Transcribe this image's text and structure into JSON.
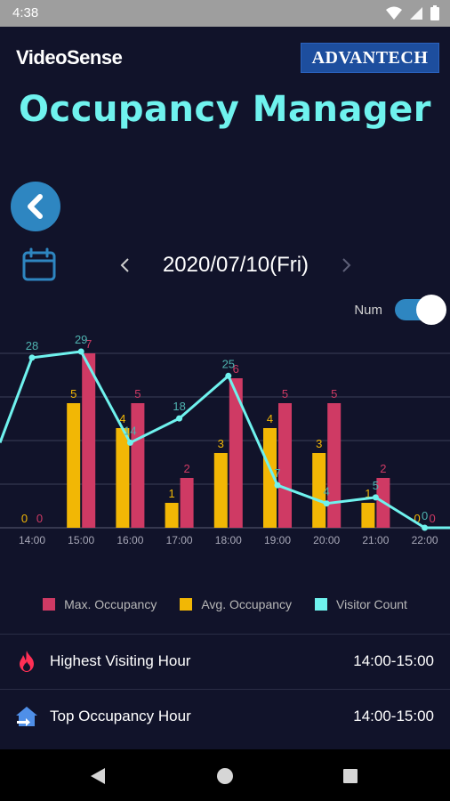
{
  "status_bar": {
    "time": "4:38"
  },
  "header": {
    "brand": "VideoSense",
    "partner": "ADVANTECH"
  },
  "title": "Occupancy Manager",
  "date_nav": {
    "date": "2020/07/10(Fri)"
  },
  "toggle": {
    "label": "Num",
    "on": true
  },
  "colors": {
    "max": "#cf3a64",
    "avg": "#f2b705",
    "visitor": "#6ff2ee",
    "accent": "#2e86c1"
  },
  "legend": {
    "max": "Max. Occupancy",
    "avg": "Avg. Occupancy",
    "visitor": "Visitor Count"
  },
  "chart_data": {
    "type": "bar",
    "categories": [
      "14:00",
      "15:00",
      "16:00",
      "17:00",
      "18:00",
      "19:00",
      "20:00",
      "21:00",
      "22:00"
    ],
    "series": [
      {
        "name": "Avg. Occupancy",
        "type": "bar",
        "values": [
          0,
          5,
          4,
          1,
          3,
          4,
          3,
          1,
          0
        ]
      },
      {
        "name": "Max. Occupancy",
        "type": "bar",
        "values": [
          0,
          7,
          5,
          2,
          6,
          5,
          5,
          2,
          0
        ]
      },
      {
        "name": "Visitor Count",
        "type": "line",
        "values": [
          28,
          29,
          14,
          18,
          25,
          7,
          4,
          5,
          0
        ]
      }
    ],
    "bar_ylim": [
      0,
      7
    ],
    "line_ylim": [
      0,
      29
    ],
    "line_edges": {
      "left": 14,
      "right": 0
    },
    "grid": true
  },
  "info": {
    "highest_label": "Highest Visiting Hour",
    "highest_value": "14:00-15:00",
    "top_label": "Top Occupancy Hour",
    "top_value": "14:00-15:00"
  }
}
